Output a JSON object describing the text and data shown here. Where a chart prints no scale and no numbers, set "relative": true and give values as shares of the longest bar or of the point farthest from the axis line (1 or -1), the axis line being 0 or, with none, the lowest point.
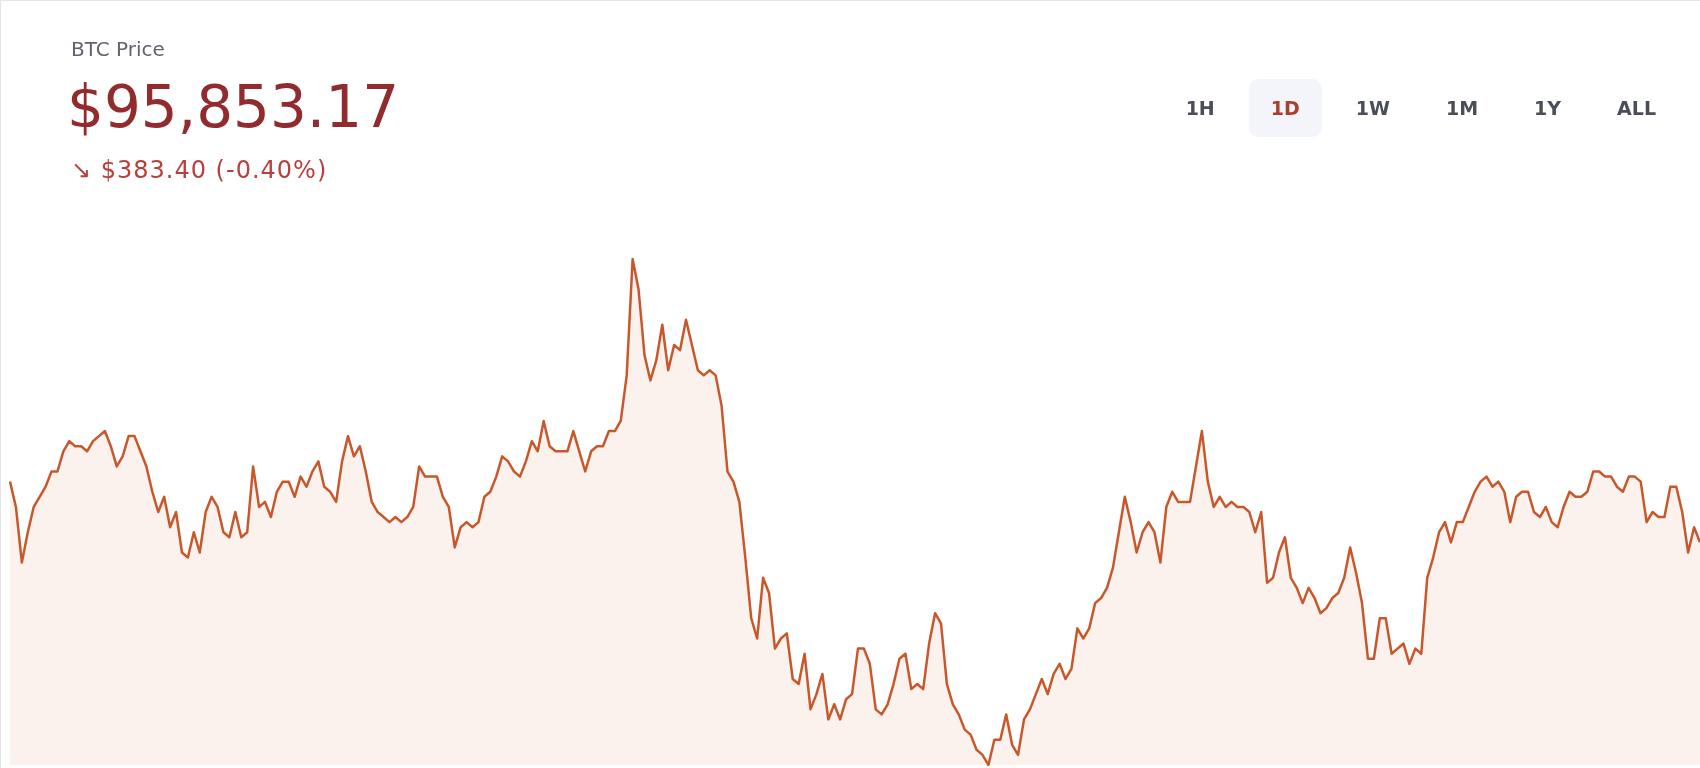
{
  "chart_data": {
    "type": "area",
    "title": "BTC Price",
    "subtitle": "$95,853.17",
    "annotations": [
      "↘ $383.40 (-0.40%)",
      "1H",
      "1D",
      "1W",
      "1M",
      "1Y",
      "ALL"
    ],
    "relative": true,
    "color": "#c8582b",
    "categories": [
      null,
      null,
      null,
      null,
      null,
      null,
      null,
      null,
      null,
      null,
      null,
      null,
      null,
      null,
      null,
      null,
      null,
      null,
      null,
      null,
      null,
      null,
      null,
      null,
      null,
      null,
      null,
      null,
      null,
      null,
      null,
      null,
      null,
      null,
      null,
      null,
      null,
      null,
      null,
      null,
      null,
      null,
      null,
      null,
      null,
      null,
      null,
      null,
      null,
      null,
      null,
      null,
      null,
      null,
      null,
      null,
      null,
      null,
      null,
      null,
      null,
      null,
      null,
      null,
      null,
      null,
      null,
      null,
      null,
      null,
      null,
      null,
      null,
      null,
      null,
      null,
      null,
      null,
      null,
      null,
      null,
      null,
      null,
      null,
      null,
      null,
      null,
      null,
      null,
      null,
      null,
      null,
      null,
      null,
      null,
      null,
      null,
      null,
      null,
      null,
      null,
      null,
      null,
      null,
      null,
      null,
      null,
      null,
      null,
      null,
      null,
      null,
      null,
      null,
      null,
      null,
      null,
      null,
      null,
      null,
      null,
      null,
      null,
      null,
      null,
      null,
      null,
      null,
      null,
      null,
      null,
      null,
      null,
      null,
      null,
      null,
      null,
      null,
      null,
      null,
      null,
      null,
      null,
      null,
      null,
      null,
      null,
      null,
      null,
      null,
      null,
      null,
      null,
      null,
      null,
      null,
      null,
      null,
      null,
      null,
      null,
      null,
      null,
      null,
      null,
      null,
      null,
      null,
      null,
      null,
      null,
      null,
      null,
      null,
      null,
      null,
      null,
      null,
      null,
      null,
      null,
      null,
      null,
      null,
      null,
      null,
      null,
      null,
      null,
      null,
      null,
      null,
      null,
      null,
      null,
      null,
      null,
      null,
      null,
      null,
      null,
      null,
      null,
      null,
      null,
      null,
      null,
      null,
      null,
      null,
      null,
      null,
      null,
      null,
      null,
      null,
      null,
      null,
      null,
      null,
      null,
      null,
      null,
      null,
      null,
      null,
      null,
      null,
      null,
      null,
      null,
      null,
      null,
      null,
      null,
      null,
      null,
      null,
      null,
      null,
      null,
      null,
      null,
      null,
      null,
      null,
      null,
      null,
      null,
      null,
      null,
      null,
      null,
      null,
      null,
      null,
      null,
      null,
      null,
      null,
      null,
      null,
      null,
      null,
      null,
      null,
      null,
      null,
      null,
      null,
      null,
      null,
      null,
      null,
      null,
      null,
      null,
      null,
      null,
      null,
      null,
      null,
      null,
      null,
      null,
      null
    ],
    "values": [
      0.56,
      0.51,
      0.4,
      0.46,
      0.51,
      0.53,
      0.55,
      0.58,
      0.58,
      0.62,
      0.64,
      0.63,
      0.63,
      0.62,
      0.64,
      0.65,
      0.66,
      0.63,
      0.59,
      0.61,
      0.65,
      0.65,
      0.62,
      0.59,
      0.54,
      0.5,
      0.53,
      0.47,
      0.5,
      0.42,
      0.41,
      0.46,
      0.42,
      0.5,
      0.53,
      0.51,
      0.46,
      0.45,
      0.5,
      0.45,
      0.46,
      0.59,
      0.51,
      0.52,
      0.49,
      0.54,
      0.56,
      0.56,
      0.53,
      0.57,
      0.55,
      0.58,
      0.6,
      0.55,
      0.54,
      0.52,
      0.6,
      0.65,
      0.61,
      0.63,
      0.58,
      0.52,
      0.5,
      0.49,
      0.48,
      0.49,
      0.48,
      0.49,
      0.51,
      0.59,
      0.57,
      0.57,
      0.57,
      0.53,
      0.51,
      0.43,
      0.47,
      0.48,
      0.47,
      0.48,
      0.53,
      0.54,
      0.57,
      0.61,
      0.6,
      0.58,
      0.57,
      0.6,
      0.64,
      0.62,
      0.68,
      0.63,
      0.62,
      0.62,
      0.62,
      0.66,
      0.62,
      0.58,
      0.62,
      0.63,
      0.63,
      0.66,
      0.66,
      0.68,
      0.77,
      1,
      0.94,
      0.81,
      0.76,
      0.8,
      0.87,
      0.78,
      0.83,
      0.82,
      0.88,
      0.83,
      0.78,
      0.77,
      0.78,
      0.77,
      0.71,
      0.58,
      0.56,
      0.52,
      0.41,
      0.29,
      0.25,
      0.37,
      0.34,
      0.23,
      0.25,
      0.26,
      0.17,
      0.16,
      0.22,
      0.11,
      0.14,
      0.18,
      0.09,
      0.12,
      0.09,
      0.13,
      0.14,
      0.23,
      0.23,
      0.2,
      0.11,
      0.1,
      0.12,
      0.16,
      0.21,
      0.22,
      0.15,
      0.16,
      0.15,
      0.24,
      0.3,
      0.28,
      0.16,
      0.12,
      0.1,
      0.07,
      0.06,
      0.03,
      0.02,
      0,
      0.05,
      0.05,
      0.1,
      0.04,
      0.02,
      0.09,
      0.11,
      0.14,
      0.17,
      0.14,
      0.18,
      0.2,
      0.17,
      0.19,
      0.27,
      0.25,
      0.27,
      0.32,
      0.33,
      0.35,
      0.39,
      0.46,
      0.53,
      0.48,
      0.42,
      0.46,
      0.48,
      0.46,
      0.4,
      0.51,
      0.54,
      0.52,
      0.52,
      0.52,
      0.59,
      0.66,
      0.56,
      0.51,
      0.53,
      0.51,
      0.52,
      0.51,
      0.51,
      0.5,
      0.46,
      0.5,
      0.36,
      0.37,
      0.42,
      0.45,
      0.37,
      0.35,
      0.32,
      0.35,
      0.33,
      0.3,
      0.31,
      0.33,
      0.34,
      0.37,
      0.43,
      0.38,
      0.32,
      0.21,
      0.21,
      0.29,
      0.29,
      0.22,
      0.23,
      0.24,
      0.2,
      0.23,
      0.22,
      0.37,
      0.41,
      0.46,
      0.48,
      0.44,
      0.48,
      0.48,
      0.51,
      0.54,
      0.56,
      0.57,
      0.55,
      0.56,
      0.54,
      0.48,
      0.53,
      0.54,
      0.54,
      0.5,
      0.49,
      0.51,
      0.48,
      0.47,
      0.51,
      0.54,
      0.53,
      0.53,
      0.54,
      0.58,
      0.58,
      0.57,
      0.57,
      0.55,
      0.54,
      0.57,
      0.57,
      0.56,
      0.48,
      0.5,
      0.49,
      0.49,
      0.55,
      0.55,
      0.5,
      0.42,
      0.47,
      0.44
    ]
  }
}
